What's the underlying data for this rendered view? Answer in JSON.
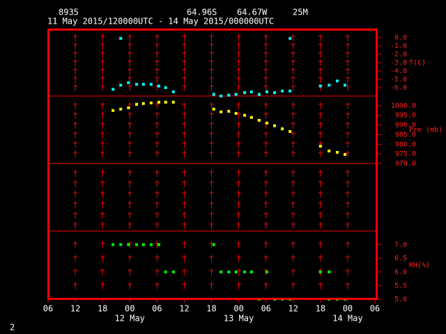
{
  "header": {
    "station": "8935",
    "lat": "64.96S",
    "lon": "64.67W",
    "elev": "25M",
    "period": "11 May 2015/120000UTC - 14 May 2015/000000UTC"
  },
  "x_axis": {
    "xlim": [
      0,
      72
    ],
    "xticks": [
      {
        "value": 0,
        "label": "06"
      },
      12,
      18,
      {
        "value": 18,
        "label": "00"
      }
    ],
    "date_labels": [
      {
        "value": 18,
        "label": "12 May"
      },
      {
        "value": 42,
        "label": "13 May"
      },
      {
        "value": 66,
        "label": "14 May"
      }
    ]
  },
  "chart_data": [
    {
      "type": "scatter",
      "ylabel": "T(C)",
      "ylim": [
        -7,
        1
      ],
      "yticks": [
        {
          "value": 0,
          "label": "0.0"
        },
        {
          "value": -1,
          "label": "-1.0"
        },
        {
          "value": -2,
          "label": "-2.0"
        },
        {
          "value": -3,
          "label": "-3.0"
        },
        {
          "value": -4,
          "label": "-4.0"
        },
        {
          "value": -5,
          "label": "-5.0"
        },
        {
          "value": -6,
          "label": "-6.0"
        }
      ],
      "series": [
        {
          "color": "#00ffff",
          "x": [
            14.3,
            16.0,
            16.0,
            17.7,
            19.5,
            21.0,
            22.7,
            24.4,
            25.9,
            27.6,
            36.5,
            38.1,
            39.8,
            41.4,
            43.3,
            44.8,
            46.5,
            48.2,
            49.9,
            51.6,
            53.3,
            53.3,
            60.0,
            61.9,
            63.7,
            65.4
          ],
          "values": [
            -6.2,
            -0.1,
            -5.7,
            -5.4,
            -5.6,
            -5.6,
            -5.6,
            -5.8,
            -6.0,
            -6.5,
            -6.8,
            -7.0,
            -6.9,
            -6.8,
            -6.6,
            -6.5,
            -6.8,
            -6.5,
            -6.6,
            -6.4,
            -6.4,
            -0.1,
            -5.8,
            -5.7,
            -5.2,
            -5.7
          ]
        }
      ]
    },
    {
      "type": "scatter",
      "ylabel": "Pre (mb)",
      "ylim": [
        970,
        1005
      ],
      "yticks": [
        {
          "value": 970,
          "label": "970.0"
        },
        {
          "value": 975,
          "label": "975.0"
        },
        {
          "value": 980,
          "label": "980.0"
        },
        {
          "value": 985,
          "label": "985.0"
        },
        {
          "value": 990,
          "label": "990.0"
        },
        {
          "value": 995,
          "label": "995.0"
        },
        {
          "value": 1000,
          "label": "1000.0"
        }
      ],
      "series": [
        {
          "color": "#ffff00",
          "x": [
            14.3,
            16.0,
            17.7,
            19.5,
            21.0,
            22.7,
            24.4,
            25.9,
            27.6,
            36.5,
            38.1,
            39.8,
            41.4,
            43.3,
            44.8,
            46.5,
            48.2,
            49.9,
            51.6,
            53.3,
            60.0,
            61.9,
            63.7,
            65.4
          ],
          "values": [
            997.5,
            998.2,
            998.9,
            1000.7,
            1001.1,
            1001.4,
            1001.8,
            1001.8,
            1001.8,
            998.2,
            996.8,
            997.1,
            996.0,
            995.0,
            993.9,
            992.4,
            991.0,
            989.6,
            988.0,
            986.6,
            979.0,
            976.5,
            975.8,
            974.7
          ]
        }
      ]
    },
    {
      "type": "scatter",
      "ylabel": "RH(%)",
      "ylim": [
        5,
        7.5
      ],
      "yticks": [
        {
          "value": 5,
          "label": "5.0"
        },
        5.5,
        {
          "value": 6,
          "label": "6.0"
        },
        6.5,
        {
          "value": 7,
          "label": "7.0"
        }
      ],
      "series": [
        {
          "color": "#00ff00",
          "x": [
            14.3,
            16.0,
            17.7,
            19.5,
            21.0,
            22.7,
            24.4,
            25.9,
            27.6,
            36.5,
            38.1,
            39.8,
            41.4,
            43.3,
            44.8,
            46.5,
            48.2,
            49.9,
            51.6,
            53.3,
            60.0,
            61.9,
            61.9,
            63.7,
            65.4
          ],
          "values": [
            7,
            7,
            7,
            7,
            7,
            7,
            7,
            6,
            6,
            7,
            6,
            6,
            6,
            6,
            6,
            5,
            6,
            5,
            5,
            5,
            6,
            6,
            5,
            5,
            5
          ]
        }
      ]
    }
  ],
  "footer": "2"
}
